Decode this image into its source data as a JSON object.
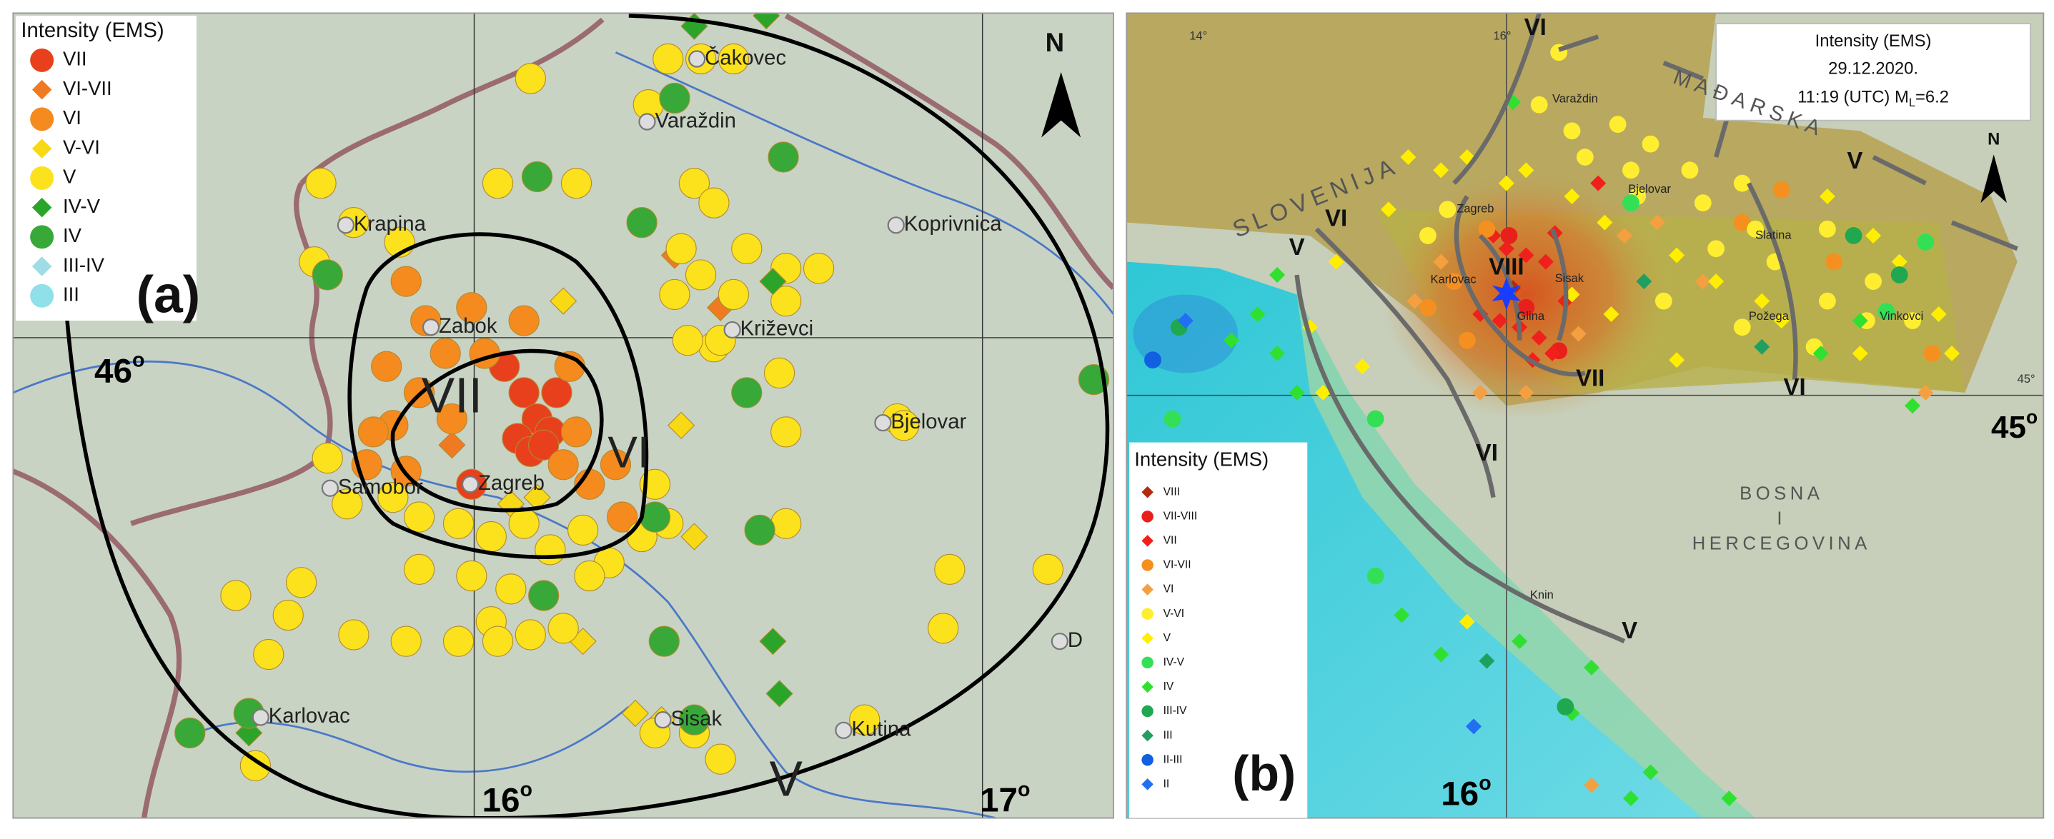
{
  "panel_a": {
    "panel_label": "(a)",
    "north": "N",
    "legend": {
      "title": "Intensity (EMS)",
      "items": [
        {
          "label": "VII",
          "shape": "circle",
          "color": "#e8401c"
        },
        {
          "label": "VI-VII",
          "shape": "diamond",
          "color": "#f07a22"
        },
        {
          "label": "VI",
          "shape": "circle",
          "color": "#f58a1f"
        },
        {
          "label": "V-VI",
          "shape": "diamond",
          "color": "#f7d916"
        },
        {
          "label": "V",
          "shape": "circle",
          "color": "#fbe21c"
        },
        {
          "label": "IV-V",
          "shape": "diamond",
          "color": "#2aa52a"
        },
        {
          "label": "IV",
          "shape": "circle",
          "color": "#38a838"
        },
        {
          "label": "III-IV",
          "shape": "diamond",
          "color": "#9fdce6"
        },
        {
          "label": "III",
          "shape": "circle",
          "color": "#8fe0e8"
        }
      ]
    },
    "places": [
      "Čakovec",
      "Varaždin",
      "Krapina",
      "Koprivnica",
      "Zabok",
      "Križevci",
      "Bjelovar",
      "Samobor",
      "Zagreb",
      "Karlovac",
      "Sisak",
      "Kutina",
      "D"
    ],
    "isoseismals": [
      "VII",
      "VI",
      "V"
    ],
    "coordinates": [
      {
        "text": "46",
        "sup": "o"
      },
      {
        "text": "16",
        "sup": "o"
      },
      {
        "text": "17",
        "sup": "o"
      }
    ]
  },
  "panel_b": {
    "panel_label": "(b)",
    "north": "N",
    "header": {
      "title": "Intensity (EMS)",
      "date": "29.12.2020.",
      "time": "11:19 (UTC) M",
      "subscript": "L",
      "magnitude": "=6.2"
    },
    "legend": {
      "title": "Intensity (EMS)",
      "items": [
        {
          "label": "VIII",
          "shape": "diamond",
          "color": "#b22a10"
        },
        {
          "label": "VII-VIII",
          "shape": "circle",
          "color": "#e8201c"
        },
        {
          "label": "VII",
          "shape": "diamond",
          "color": "#f0201c"
        },
        {
          "label": "VI-VII",
          "shape": "circle",
          "color": "#f59020"
        },
        {
          "label": "VI",
          "shape": "diamond",
          "color": "#f5a040"
        },
        {
          "label": "V-VI",
          "shape": "circle",
          "color": "#ffee30"
        },
        {
          "label": "V",
          "shape": "diamond",
          "color": "#ffee00"
        },
        {
          "label": "IV-V",
          "shape": "circle",
          "color": "#33e055"
        },
        {
          "label": "IV",
          "shape": "diamond",
          "color": "#30e030"
        },
        {
          "label": "III-IV",
          "shape": "circle",
          "color": "#20a850"
        },
        {
          "label": "III",
          "shape": "diamond",
          "color": "#20a060"
        },
        {
          "label": "II-III",
          "shape": "circle",
          "color": "#1060e0"
        },
        {
          "label": "II",
          "shape": "diamond",
          "color": "#2070f0"
        }
      ]
    },
    "places": [
      "Varaždin",
      "Bjelovar",
      "Zagreb",
      "Karlovac",
      "Sisak",
      "Glina",
      "Slatina",
      "Požega",
      "Vinkovci",
      "Knin"
    ],
    "countries": [
      "SLOVENIJA",
      "MAĐARSKA",
      "BOSNA",
      "I",
      "HERCEGOVINA"
    ],
    "isoseismals": [
      "VI",
      "V",
      "VI",
      "V",
      "VIII",
      "VII",
      "VI",
      "VI",
      "V"
    ],
    "grid_labels": [
      "14°",
      "16°",
      "45°"
    ],
    "coordinates": [
      {
        "text": "16",
        "sup": "o"
      },
      {
        "text": "45",
        "sup": "o"
      }
    ]
  }
}
